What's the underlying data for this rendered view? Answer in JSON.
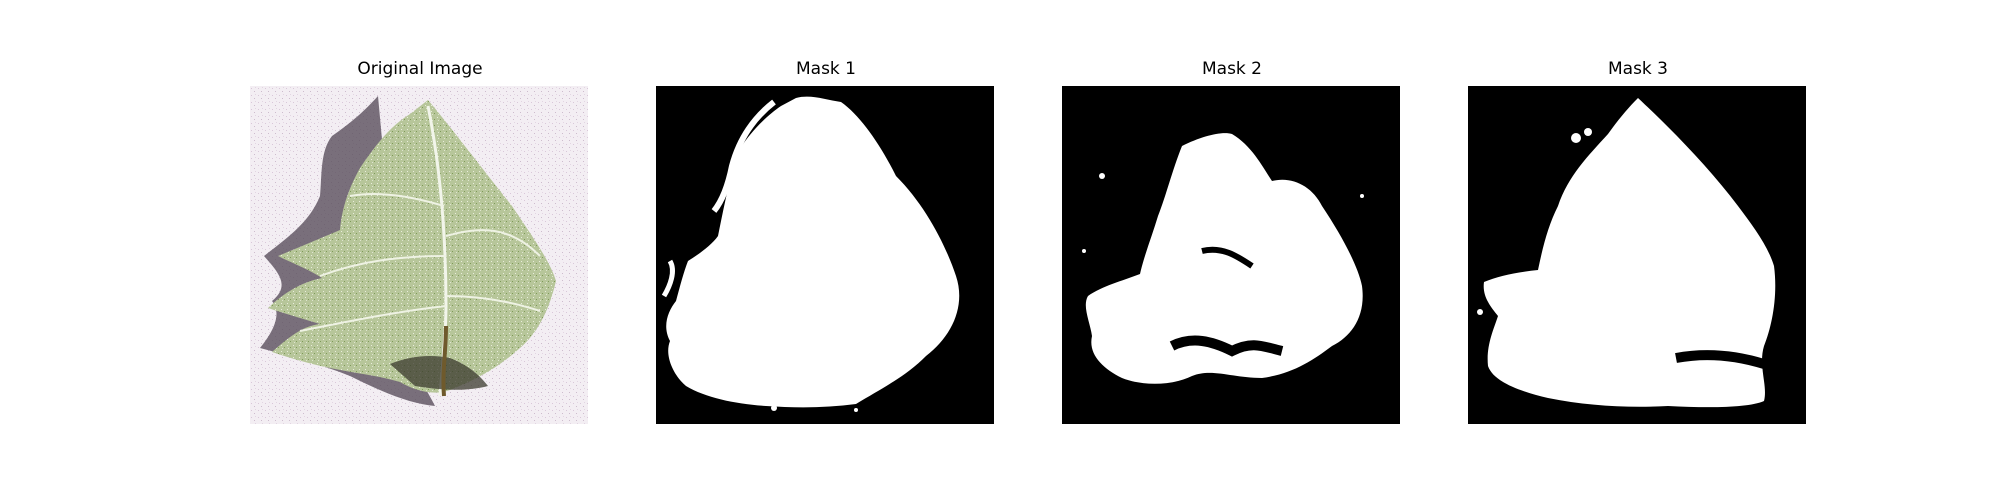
{
  "figure": {
    "background": "#ffffff",
    "panels": [
      {
        "title": "Original Image",
        "kind": "photo",
        "subject": "leaf"
      },
      {
        "title": "Mask 1",
        "kind": "binary-mask",
        "foreground": "#ffffff",
        "background": "#000000"
      },
      {
        "title": "Mask 2",
        "kind": "binary-mask",
        "foreground": "#ffffff",
        "background": "#000000"
      },
      {
        "title": "Mask 3",
        "kind": "binary-mask",
        "foreground": "#ffffff",
        "background": "#000000"
      }
    ]
  }
}
